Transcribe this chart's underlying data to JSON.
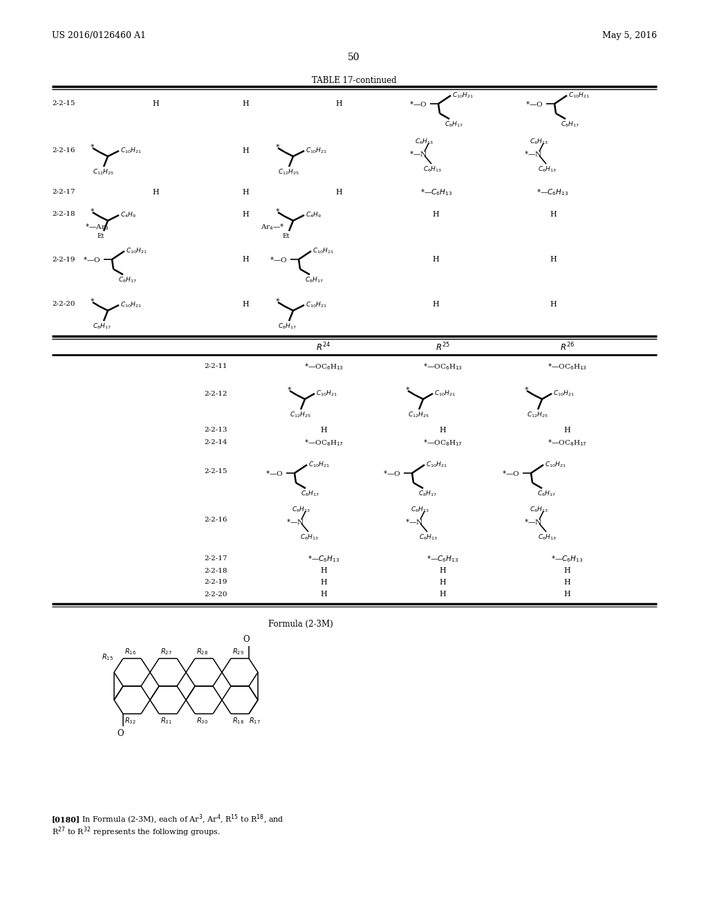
{
  "header_left": "US 2016/0126460 A1",
  "header_right": "May 5, 2016",
  "page_number": "50",
  "table_title": "TABLE 17-continued",
  "bg": "#ffffff"
}
